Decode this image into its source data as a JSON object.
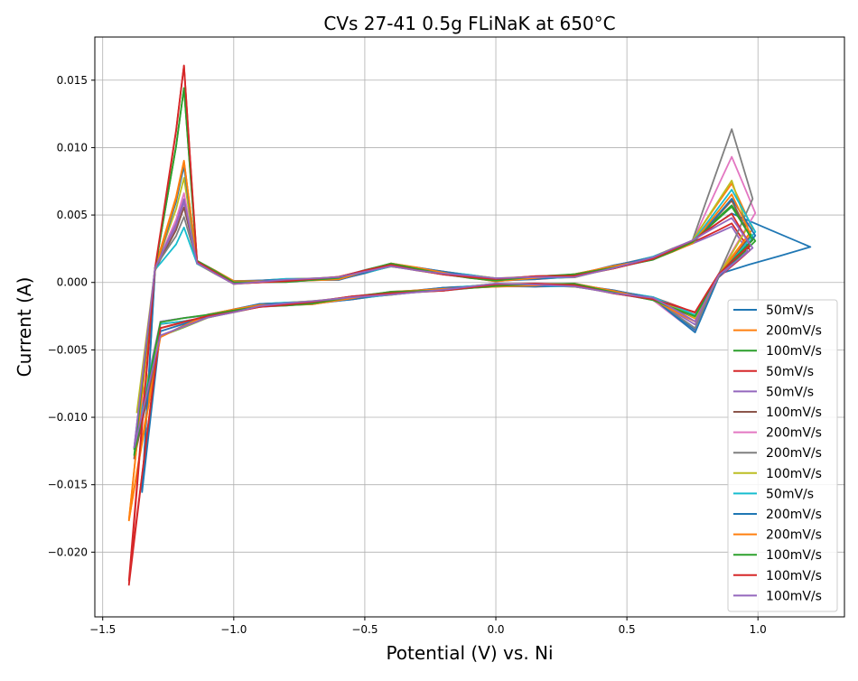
{
  "chart_data": {
    "type": "line",
    "title": "CVs 27-41 0.5g FLiNaK at 650°C",
    "xlabel": "Potential (V) vs. Ni",
    "ylabel": "Current (A)",
    "xlim": [
      -1.53,
      1.33
    ],
    "ylim": [
      -0.0248,
      0.0182
    ],
    "xticks": [
      -1.5,
      -1.0,
      -0.5,
      0.0,
      0.5,
      1.0
    ],
    "xtick_labels": [
      "−1.5",
      "−1.0",
      "−0.5",
      "0.0",
      "0.5",
      "1.0"
    ],
    "yticks": [
      -0.02,
      -0.015,
      -0.01,
      -0.005,
      0.0,
      0.005,
      0.01,
      0.015
    ],
    "ytick_labels": [
      "−0.020",
      "−0.015",
      "−0.010",
      "−0.005",
      "0.000",
      "0.005",
      "0.010",
      "0.015"
    ],
    "grid": true,
    "legend_position": "lower-right",
    "series": [
      {
        "name": "50mV/s",
        "color": "#1f77b4",
        "vertex_low": -1.35,
        "vertex_high": 1.2,
        "i_min": -0.0155,
        "i_cath_peak": 0.0088,
        "i_anod_peak": 0.005,
        "i_return_peak": -0.0036
      },
      {
        "name": "200mV/s",
        "color": "#ff7f0e",
        "vertex_low": -1.4,
        "vertex_high": 0.98,
        "i_min": -0.0178,
        "i_cath_peak": 0.009,
        "i_anod_peak": 0.0073,
        "i_return_peak": -0.0028
      },
      {
        "name": "100mV/s",
        "color": "#2ca02c",
        "vertex_low": -1.38,
        "vertex_high": 0.99,
        "i_min": -0.0125,
        "i_cath_peak": 0.0145,
        "i_anod_peak": 0.0058,
        "i_return_peak": -0.0025
      },
      {
        "name": "50mV/s",
        "color": "#d62728",
        "vertex_low": -1.4,
        "vertex_high": 0.97,
        "i_min": -0.0225,
        "i_cath_peak": 0.0162,
        "i_anod_peak": 0.0045,
        "i_return_peak": -0.0022
      },
      {
        "name": "50mV/s",
        "color": "#9467bd",
        "vertex_low": -1.38,
        "vertex_high": 0.96,
        "i_min": -0.0122,
        "i_cath_peak": 0.006,
        "i_anod_peak": 0.0042,
        "i_return_peak": -0.003
      },
      {
        "name": "100mV/s",
        "color": "#8c564b",
        "vertex_low": -1.38,
        "vertex_high": 0.97,
        "i_min": -0.013,
        "i_cath_peak": 0.0055,
        "i_anod_peak": 0.006,
        "i_return_peak": -0.0025
      },
      {
        "name": "200mV/s",
        "color": "#e377c2",
        "vertex_low": -1.37,
        "vertex_high": 0.99,
        "i_min": -0.0108,
        "i_cath_peak": 0.0065,
        "i_anod_peak": 0.0092,
        "i_return_peak": -0.0037
      },
      {
        "name": "200mV/s",
        "color": "#7f7f7f",
        "vertex_low": -1.37,
        "vertex_high": 0.98,
        "i_min": -0.0115,
        "i_cath_peak": 0.0048,
        "i_anod_peak": 0.0113,
        "i_return_peak": -0.0035
      },
      {
        "name": "100mV/s",
        "color": "#bcbd22",
        "vertex_low": -1.37,
        "vertex_high": 0.96,
        "i_min": -0.0098,
        "i_cath_peak": 0.0078,
        "i_anod_peak": 0.0076,
        "i_return_peak": -0.0027
      },
      {
        "name": "50mV/s",
        "color": "#17becf",
        "vertex_low": -1.37,
        "vertex_high": 0.99,
        "i_min": -0.0112,
        "i_cath_peak": 0.0042,
        "i_anod_peak": 0.007,
        "i_return_peak": -0.0024
      },
      {
        "name": "200mV/s",
        "color": "#1f77b4",
        "vertex_low": -1.35,
        "vertex_high": 0.99,
        "i_min": -0.0155,
        "i_cath_peak": 0.0087,
        "i_anod_peak": 0.0063,
        "i_return_peak": -0.0036
      },
      {
        "name": "200mV/s",
        "color": "#ff7f0e",
        "vertex_low": -1.4,
        "vertex_high": 0.97,
        "i_min": -0.0175,
        "i_cath_peak": 0.0089,
        "i_anod_peak": 0.0065,
        "i_return_peak": -0.0028
      },
      {
        "name": "100mV/s",
        "color": "#2ca02c",
        "vertex_low": -1.38,
        "vertex_high": 0.98,
        "i_min": -0.0128,
        "i_cath_peak": 0.0143,
        "i_anod_peak": 0.0055,
        "i_return_peak": -0.0025
      },
      {
        "name": "100mV/s",
        "color": "#d62728",
        "vertex_low": -1.4,
        "vertex_high": 0.97,
        "i_min": -0.0222,
        "i_cath_peak": 0.016,
        "i_anod_peak": 0.005,
        "i_return_peak": -0.0023
      },
      {
        "name": "100mV/s",
        "color": "#9467bd",
        "vertex_low": -1.38,
        "vertex_high": 0.98,
        "i_min": -0.0124,
        "i_cath_peak": 0.0062,
        "i_anod_peak": 0.0048,
        "i_return_peak": -0.003
      }
    ]
  }
}
